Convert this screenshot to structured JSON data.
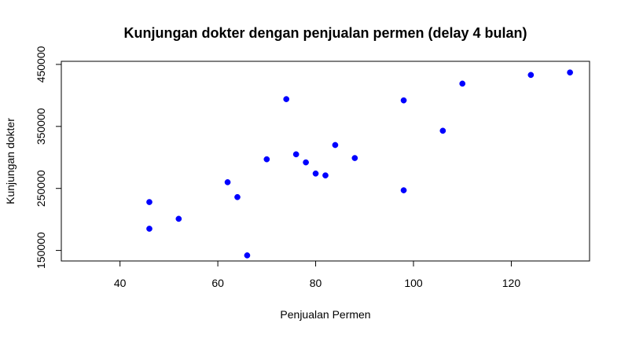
{
  "chart_data": {
    "type": "scatter",
    "title": "Kunjungan dokter dengan penjualan permen (delay 4 bulan)",
    "xlabel": "Penjualan Permen",
    "ylabel": "Kunjungan dokter",
    "xlim": [
      28,
      136
    ],
    "ylim": [
      133000,
      455000
    ],
    "xticks": [
      40,
      60,
      80,
      100,
      120
    ],
    "yticks": [
      150000,
      250000,
      350000,
      450000
    ],
    "xtick_labels": [
      "40",
      "60",
      "80",
      "100",
      "120"
    ],
    "ytick_labels": [
      "150000",
      "250000",
      "350000",
      "450000"
    ],
    "grid": false,
    "point_color": "#0000ff",
    "points": [
      {
        "x": 46,
        "y": 228000
      },
      {
        "x": 46,
        "y": 185000
      },
      {
        "x": 52,
        "y": 201000
      },
      {
        "x": 62,
        "y": 260000
      },
      {
        "x": 64,
        "y": 236000
      },
      {
        "x": 66,
        "y": 142000
      },
      {
        "x": 70,
        "y": 297000
      },
      {
        "x": 74,
        "y": 394000
      },
      {
        "x": 76,
        "y": 305000
      },
      {
        "x": 78,
        "y": 292000
      },
      {
        "x": 80,
        "y": 274000
      },
      {
        "x": 82,
        "y": 271000
      },
      {
        "x": 84,
        "y": 320000
      },
      {
        "x": 88,
        "y": 299000
      },
      {
        "x": 98,
        "y": 392000
      },
      {
        "x": 98,
        "y": 247000
      },
      {
        "x": 106,
        "y": 343000
      },
      {
        "x": 110,
        "y": 419000
      },
      {
        "x": 124,
        "y": 433000
      },
      {
        "x": 132,
        "y": 437000
      }
    ]
  }
}
